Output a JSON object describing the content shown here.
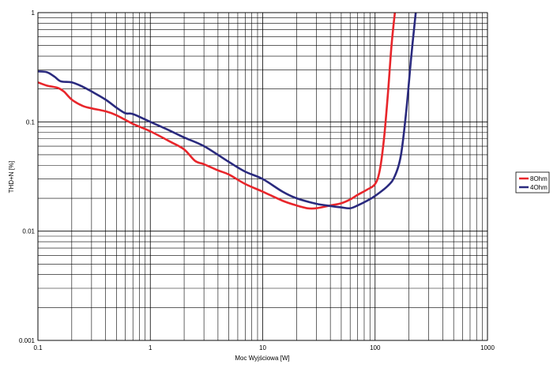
{
  "chart_data": {
    "type": "line",
    "xlabel": "Moc Wyjściowa [W]",
    "ylabel": "THD+N [%]",
    "xscale": "log",
    "yscale": "log",
    "xlim": [
      0.1,
      1000
    ],
    "ylim": [
      0.001,
      1
    ],
    "grid": true,
    "legend_position": "right",
    "x_tick_labels": [
      "0.1",
      "1",
      "10",
      "100",
      "1000"
    ],
    "y_tick_labels": [
      "0.001",
      "0.01",
      "0.1",
      "1"
    ],
    "x_ticks": [
      0.1,
      1,
      10,
      100,
      1000
    ],
    "y_ticks": [
      0.001,
      0.01,
      0.1,
      1
    ],
    "series": [
      {
        "name": "8Ohm",
        "color": "#e8262b",
        "points": [
          [
            0.1,
            0.23
          ],
          [
            0.12,
            0.215
          ],
          [
            0.15,
            0.205
          ],
          [
            0.17,
            0.19
          ],
          [
            0.2,
            0.16
          ],
          [
            0.25,
            0.14
          ],
          [
            0.3,
            0.133
          ],
          [
            0.4,
            0.125
          ],
          [
            0.5,
            0.115
          ],
          [
            0.7,
            0.096
          ],
          [
            1,
            0.082
          ],
          [
            1.5,
            0.066
          ],
          [
            2,
            0.056
          ],
          [
            2.5,
            0.044
          ],
          [
            3,
            0.041
          ],
          [
            4,
            0.036
          ],
          [
            5,
            0.033
          ],
          [
            7,
            0.027
          ],
          [
            10,
            0.023
          ],
          [
            15,
            0.019
          ],
          [
            20,
            0.0172
          ],
          [
            25,
            0.0162
          ],
          [
            30,
            0.0162
          ],
          [
            40,
            0.0172
          ],
          [
            50,
            0.018
          ],
          [
            60,
            0.0195
          ],
          [
            70,
            0.0215
          ],
          [
            85,
            0.024
          ],
          [
            100,
            0.027
          ],
          [
            110,
            0.036
          ],
          [
            120,
            0.07
          ],
          [
            130,
            0.18
          ],
          [
            140,
            0.5
          ],
          [
            150,
            1.0
          ]
        ]
      },
      {
        "name": "4Ohm",
        "color": "#2a2a7e",
        "points": [
          [
            0.1,
            0.29
          ],
          [
            0.12,
            0.285
          ],
          [
            0.14,
            0.26
          ],
          [
            0.16,
            0.235
          ],
          [
            0.2,
            0.23
          ],
          [
            0.25,
            0.21
          ],
          [
            0.3,
            0.19
          ],
          [
            0.4,
            0.16
          ],
          [
            0.5,
            0.135
          ],
          [
            0.6,
            0.12
          ],
          [
            0.7,
            0.118
          ],
          [
            1,
            0.1
          ],
          [
            1.5,
            0.083
          ],
          [
            2,
            0.072
          ],
          [
            3,
            0.06
          ],
          [
            5,
            0.043
          ],
          [
            7,
            0.035
          ],
          [
            10,
            0.03
          ],
          [
            15,
            0.023
          ],
          [
            20,
            0.02
          ],
          [
            30,
            0.0178
          ],
          [
            40,
            0.017
          ],
          [
            50,
            0.0165
          ],
          [
            60,
            0.0162
          ],
          [
            70,
            0.0172
          ],
          [
            85,
            0.019
          ],
          [
            100,
            0.021
          ],
          [
            130,
            0.026
          ],
          [
            150,
            0.032
          ],
          [
            170,
            0.05
          ],
          [
            190,
            0.13
          ],
          [
            210,
            0.4
          ],
          [
            230,
            1.0
          ]
        ]
      }
    ]
  }
}
